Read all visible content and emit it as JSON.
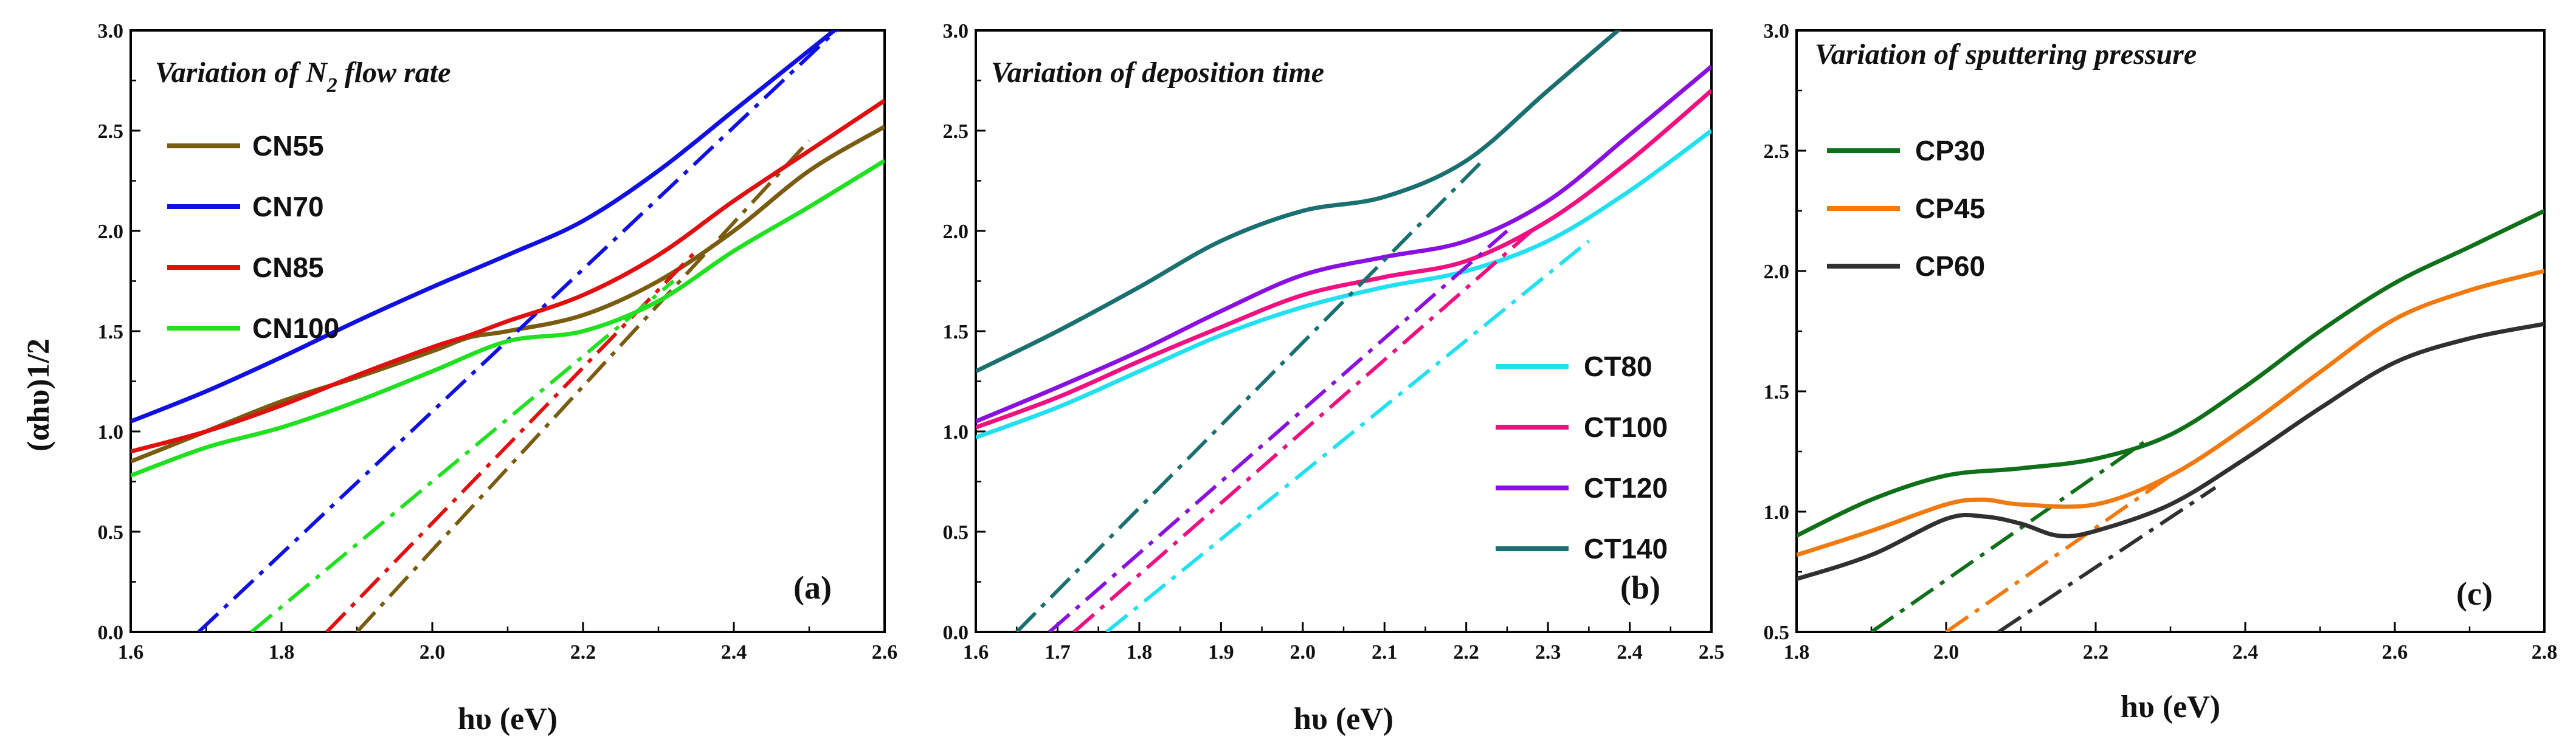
{
  "chart_data": [
    {
      "type": "line",
      "panel_label": "(a)",
      "title_prefix": "Variation of N",
      "title_sub": "2",
      "title_suffix": " flow rate",
      "xlabel": "hυ (eV)",
      "ylabel": "(αhυ)1/2",
      "xlim": [
        1.6,
        2.6
      ],
      "ylim": [
        0.0,
        3.0
      ],
      "xticks": [
        1.6,
        1.8,
        2.0,
        2.2,
        2.4,
        2.6
      ],
      "xtick_labels": [
        "1.6",
        "1.8",
        "2.0",
        "2.2",
        "2.4",
        "2.6"
      ],
      "yticks": [
        0.0,
        0.5,
        1.0,
        1.5,
        2.0,
        2.5,
        3.0
      ],
      "ytick_labels": [
        "0.0",
        "0.5",
        "1.0",
        "1.5",
        "2.0",
        "2.5",
        "3.0"
      ],
      "legend_position": "top-left",
      "series": [
        {
          "name": "CN55",
          "color": "#7a5c10",
          "x": [
            1.6,
            1.7,
            1.8,
            1.9,
            2.0,
            2.05,
            2.1,
            2.2,
            2.3,
            2.4,
            2.5,
            2.6
          ],
          "y": [
            0.85,
            1.0,
            1.15,
            1.27,
            1.4,
            1.47,
            1.5,
            1.58,
            1.75,
            2.0,
            2.3,
            2.52
          ],
          "fit": {
            "x": [
              1.9,
              2.5
            ],
            "y": [
              0.0,
              2.45
            ]
          }
        },
        {
          "name": "CN70",
          "color": "#1010e0",
          "x": [
            1.6,
            1.7,
            1.8,
            1.9,
            2.0,
            2.1,
            2.2,
            2.3,
            2.4,
            2.5,
            2.55
          ],
          "y": [
            1.05,
            1.2,
            1.37,
            1.55,
            1.72,
            1.88,
            2.05,
            2.3,
            2.6,
            2.9,
            3.05
          ],
          "fit": {
            "x": [
              1.69,
              2.55
            ],
            "y": [
              0.0,
              3.05
            ]
          }
        },
        {
          "name": "CN85",
          "color": "#e01010",
          "x": [
            1.6,
            1.7,
            1.8,
            1.9,
            2.0,
            2.05,
            2.1,
            2.2,
            2.3,
            2.4,
            2.5,
            2.6
          ],
          "y": [
            0.9,
            1.0,
            1.13,
            1.28,
            1.42,
            1.48,
            1.55,
            1.68,
            1.88,
            2.15,
            2.4,
            2.65
          ],
          "fit": {
            "x": [
              1.86,
              2.35
            ],
            "y": [
              0.0,
              1.9
            ]
          }
        },
        {
          "name": "CN100",
          "color": "#20e020",
          "x": [
            1.6,
            1.7,
            1.8,
            1.9,
            2.0,
            2.1,
            2.2,
            2.3,
            2.4,
            2.5,
            2.6
          ],
          "y": [
            0.78,
            0.92,
            1.02,
            1.15,
            1.3,
            1.45,
            1.5,
            1.65,
            1.9,
            2.12,
            2.35
          ],
          "fit": {
            "x": [
              1.76,
              2.32
            ],
            "y": [
              0.0,
              1.75
            ]
          }
        }
      ]
    },
    {
      "type": "line",
      "panel_label": "(b)",
      "title_prefix": "Variation of deposition time",
      "title_sub": "",
      "title_suffix": "",
      "xlabel": "hυ (eV)",
      "ylabel": "",
      "xlim": [
        1.6,
        2.5
      ],
      "ylim": [
        0.0,
        3.0
      ],
      "xticks": [
        1.6,
        1.7,
        1.8,
        1.9,
        2.0,
        2.1,
        2.2,
        2.3,
        2.4,
        2.5
      ],
      "xtick_labels": [
        "1.6",
        "1.7",
        "1.8",
        "1.9",
        "2.0",
        "2.1",
        "2.2",
        "2.3",
        "2.4",
        "2.5"
      ],
      "yticks": [
        0.0,
        0.5,
        1.0,
        1.5,
        2.0,
        2.5,
        3.0
      ],
      "ytick_labels": [
        "0.0",
        "0.5",
        "1.0",
        "1.5",
        "2.0",
        "2.5",
        "3.0"
      ],
      "legend_position": "center-right",
      "series": [
        {
          "name": "CT80",
          "color": "#22e0f0",
          "x": [
            1.6,
            1.7,
            1.8,
            1.9,
            2.0,
            2.1,
            2.2,
            2.3,
            2.4,
            2.5
          ],
          "y": [
            0.97,
            1.12,
            1.3,
            1.48,
            1.62,
            1.72,
            1.8,
            1.95,
            2.2,
            2.5
          ],
          "fit": {
            "x": [
              1.76,
              2.35
            ],
            "y": [
              0.0,
              1.95
            ]
          }
        },
        {
          "name": "CT100",
          "color": "#f01080",
          "x": [
            1.6,
            1.7,
            1.8,
            1.9,
            2.0,
            2.1,
            2.2,
            2.3,
            2.4,
            2.5
          ],
          "y": [
            1.02,
            1.17,
            1.35,
            1.52,
            1.68,
            1.77,
            1.85,
            2.05,
            2.35,
            2.7
          ],
          "fit": {
            "x": [
              1.72,
              2.28
            ],
            "y": [
              0.0,
              2.0
            ]
          }
        },
        {
          "name": "CT120",
          "color": "#8a10e0",
          "x": [
            1.6,
            1.7,
            1.8,
            1.9,
            2.0,
            2.1,
            2.2,
            2.3,
            2.4,
            2.5
          ],
          "y": [
            1.05,
            1.22,
            1.4,
            1.6,
            1.78,
            1.87,
            1.95,
            2.15,
            2.48,
            2.82
          ],
          "fit": {
            "x": [
              1.69,
              2.25
            ],
            "y": [
              0.0,
              2.0
            ]
          }
        },
        {
          "name": "CT140",
          "color": "#1a7070",
          "x": [
            1.6,
            1.7,
            1.8,
            1.9,
            2.0,
            2.1,
            2.2,
            2.3,
            2.4
          ],
          "y": [
            1.3,
            1.5,
            1.72,
            1.95,
            2.1,
            2.17,
            2.35,
            2.7,
            3.05
          ],
          "fit": {
            "x": [
              1.65,
              2.22
            ],
            "y": [
              0.0,
              2.35
            ]
          }
        }
      ]
    },
    {
      "type": "line",
      "panel_label": "(c)",
      "title_prefix": "Variation of sputtering pressure",
      "title_sub": "",
      "title_suffix": "",
      "xlabel": "hυ (eV)",
      "ylabel": "",
      "xlim": [
        1.8,
        2.8
      ],
      "ylim": [
        0.5,
        3.0
      ],
      "xticks": [
        1.8,
        2.0,
        2.2,
        2.4,
        2.6,
        2.8
      ],
      "xtick_labels": [
        "1.8",
        "2.0",
        "2.2",
        "2.4",
        "2.6",
        "2.8"
      ],
      "yticks": [
        0.5,
        1.0,
        1.5,
        2.0,
        2.5,
        3.0
      ],
      "ytick_labels": [
        "0.5",
        "1.0",
        "1.5",
        "2.0",
        "2.5",
        "3.0"
      ],
      "legend_position": "top-left",
      "series": [
        {
          "name": "CP30",
          "color": "#10701a",
          "x": [
            1.8,
            1.9,
            2.0,
            2.1,
            2.2,
            2.3,
            2.4,
            2.5,
            2.6,
            2.7,
            2.8
          ],
          "y": [
            0.9,
            1.05,
            1.15,
            1.18,
            1.22,
            1.32,
            1.52,
            1.75,
            1.95,
            2.1,
            2.25
          ],
          "fit": {
            "x": [
              1.9,
              2.27
            ],
            "y": [
              0.5,
              1.3
            ]
          }
        },
        {
          "name": "CP45",
          "color": "#f07a10",
          "x": [
            1.8,
            1.9,
            2.0,
            2.05,
            2.1,
            2.2,
            2.3,
            2.4,
            2.5,
            2.6,
            2.7,
            2.8
          ],
          "y": [
            0.82,
            0.92,
            1.03,
            1.05,
            1.03,
            1.03,
            1.15,
            1.35,
            1.58,
            1.8,
            1.92,
            2.0
          ],
          "fit": {
            "x": [
              2.0,
              2.3
            ],
            "y": [
              0.5,
              1.15
            ]
          }
        },
        {
          "name": "CP60",
          "color": "#303030",
          "x": [
            1.8,
            1.9,
            2.0,
            2.05,
            2.1,
            2.15,
            2.2,
            2.3,
            2.4,
            2.5,
            2.6,
            2.7,
            2.8
          ],
          "y": [
            0.72,
            0.82,
            0.97,
            0.98,
            0.95,
            0.9,
            0.92,
            1.03,
            1.22,
            1.43,
            1.62,
            1.72,
            1.78
          ],
          "fit": {
            "x": [
              2.07,
              2.36
            ],
            "y": [
              0.5,
              1.1
            ]
          }
        }
      ]
    }
  ]
}
